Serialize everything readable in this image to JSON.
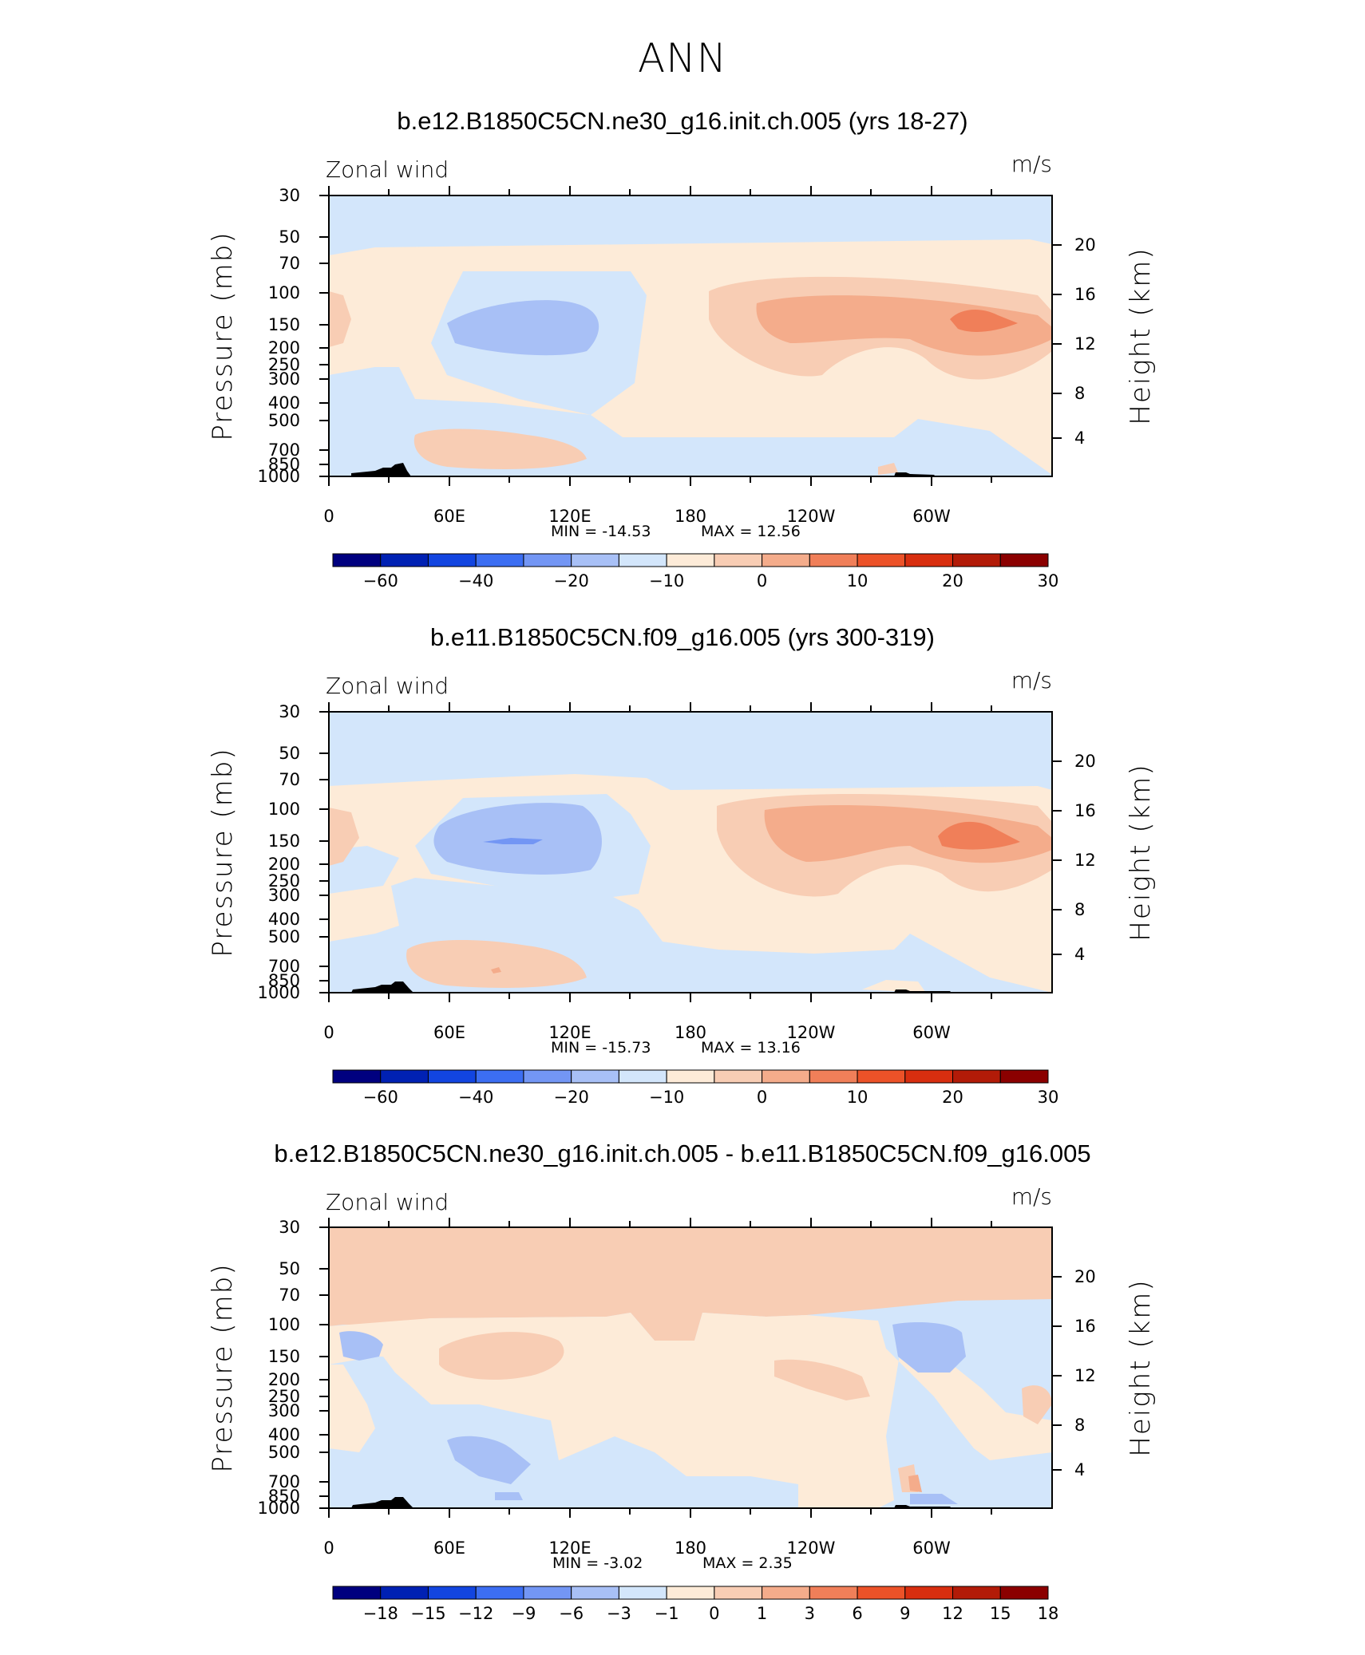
{
  "page": {
    "title": "ANN"
  },
  "colors": {
    "abs_scale": [
      "#00007f",
      "#0021b3",
      "#1245e0",
      "#3c6ef2",
      "#7396f4",
      "#a8c0f6",
      "#d3e6fb",
      "#fdebd8",
      "#f8cdb4",
      "#f4ac8b",
      "#f07f59",
      "#ec5228",
      "#d82e0f",
      "#b21b08",
      "#8b0000"
    ],
    "diff_scale": [
      "#00007f",
      "#0021b3",
      "#1245e0",
      "#3c6ef2",
      "#7396f4",
      "#a8c0f6",
      "#d3e6fb",
      "#fdebd8",
      "#f8cdb4",
      "#f4ac8b",
      "#f07f59",
      "#ec5228",
      "#d82e0f",
      "#b21b08",
      "#8b0000"
    ],
    "topography": "#000000"
  },
  "chart_data": [
    {
      "type": "heatmap",
      "title": "b.e12.B1850C5CN.ne30_g16.init.ch.005 (yrs 18-27)",
      "left_string": "Zonal wind",
      "right_string": "m/s",
      "ylabel": "Pressure (mb)",
      "y2label": "Height (km)",
      "x_ticks": [
        "0",
        "60E",
        "120E",
        "180",
        "120W",
        "60W"
      ],
      "y_ticks": [
        "30",
        "50",
        "70",
        "100",
        "150",
        "200",
        "250",
        "300",
        "400",
        "500",
        "700",
        "850",
        "1000"
      ],
      "y2_ticks": [
        "20",
        "16",
        "12",
        "8",
        "4"
      ],
      "min_label": "MIN = -14.53",
      "max_label": "MAX = 12.56",
      "min": -14.53,
      "max": 12.56,
      "colorbar_labels": [
        "-60",
        "-40",
        "-20",
        "-10",
        "0",
        "10",
        "20",
        "30"
      ]
    },
    {
      "type": "heatmap",
      "title": "b.e11.B1850C5CN.f09_g16.005 (yrs 300-319)",
      "left_string": "Zonal wind",
      "right_string": "m/s",
      "ylabel": "Pressure (mb)",
      "y2label": "Height (km)",
      "x_ticks": [
        "0",
        "60E",
        "120E",
        "180",
        "120W",
        "60W"
      ],
      "y_ticks": [
        "30",
        "50",
        "70",
        "100",
        "150",
        "200",
        "250",
        "300",
        "400",
        "500",
        "700",
        "850",
        "1000"
      ],
      "y2_ticks": [
        "20",
        "16",
        "12",
        "8",
        "4"
      ],
      "min_label": "MIN = -15.73",
      "max_label": "MAX = 13.16",
      "min": -15.73,
      "max": 13.16,
      "colorbar_labels": [
        "-60",
        "-40",
        "-20",
        "-10",
        "0",
        "10",
        "20",
        "30"
      ]
    },
    {
      "type": "heatmap",
      "title": "b.e12.B1850C5CN.ne30_g16.init.ch.005 - b.e11.B1850C5CN.f09_g16.005",
      "left_string": "Zonal wind",
      "right_string": "m/s",
      "ylabel": "Pressure (mb)",
      "y2label": "Height (km)",
      "x_ticks": [
        "0",
        "60E",
        "120E",
        "180",
        "120W",
        "60W"
      ],
      "y_ticks": [
        "30",
        "50",
        "70",
        "100",
        "150",
        "200",
        "250",
        "300",
        "400",
        "500",
        "700",
        "850",
        "1000"
      ],
      "y2_ticks": [
        "20",
        "16",
        "12",
        "8",
        "4"
      ],
      "min_label": "MIN = -3.02",
      "max_label": "MAX = 2.35",
      "min": -3.02,
      "max": 2.35,
      "colorbar_labels": [
        "-18",
        "-15",
        "-12",
        "-9",
        "-6",
        "-3",
        "-1",
        "0",
        "1",
        "3",
        "6",
        "9",
        "12",
        "15",
        "18"
      ]
    }
  ]
}
